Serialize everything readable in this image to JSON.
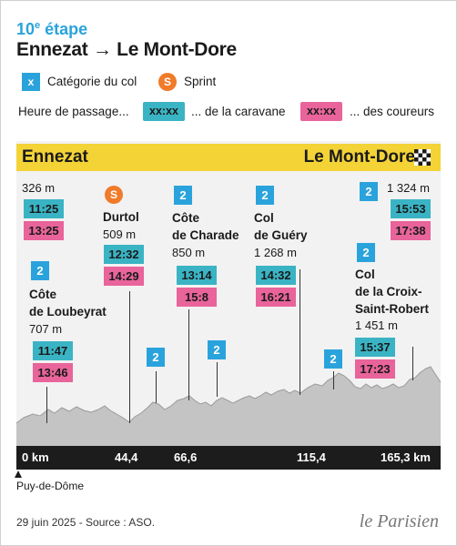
{
  "header": {
    "stage": "10",
    "stage_sup": "e",
    "stage_word": " étape",
    "route": "Ennezat → Le Mont-Dore"
  },
  "legend": {
    "cat_symbol": "x",
    "cat_label": "Catégorie du col",
    "sprint_symbol": "S",
    "sprint_label": "Sprint",
    "passage_label": "Heure de passage...",
    "pill_text": "xx:xx",
    "caravan_label": "... de la caravane",
    "riders_label": "... des coureurs"
  },
  "bar": {
    "start": "Ennezat",
    "finish": "Le Mont-Dore"
  },
  "points": {
    "ennezat": {
      "alt": "326 m",
      "caravan": "11:25",
      "riders": "13:25"
    },
    "loubeyrat": {
      "cat": "2",
      "name1": "Côte",
      "name2": "de Loubeyrat",
      "alt": "707 m",
      "caravan": "11:47",
      "riders": "13:46"
    },
    "durtol": {
      "sprint": "S",
      "name": "Durtol",
      "alt": "509 m",
      "caravan": "12:32",
      "riders": "14:29"
    },
    "charade": {
      "cat": "2",
      "name1": "Côte",
      "name2": "de Charade",
      "alt": "850 m",
      "caravan": "13:14",
      "riders": "15:8"
    },
    "guery": {
      "cat": "2",
      "name1": "Col",
      "name2": "de Guéry",
      "alt": "1 268 m",
      "caravan": "14:32",
      "riders": "16:21"
    },
    "croix": {
      "cat": "2",
      "name1": "Col",
      "name2": "de la Croix-",
      "name3": "Saint-Robert",
      "alt": "1 451 m",
      "caravan": "15:37",
      "riders": "17:23"
    },
    "finish": {
      "cat": "2",
      "alt": "1 324 m",
      "caravan": "15:53",
      "riders": "17:38"
    }
  },
  "extra_cats": [
    "2",
    "2",
    "2"
  ],
  "km": {
    "k0": "0 km",
    "k1": "44,4",
    "k2": "66,6",
    "k3": "115,4",
    "k4": "165,3 km"
  },
  "footer": {
    "dept": "Puy-de-Dôme",
    "date_source": "29 juin 2025 - Source : ASO.",
    "brand": "le Parisien"
  },
  "colors": {
    "blue": "#2aa3dc",
    "teal": "#3ab4c4",
    "pink": "#e8649a",
    "orange": "#f07b2a",
    "yellow": "#f3d336"
  }
}
